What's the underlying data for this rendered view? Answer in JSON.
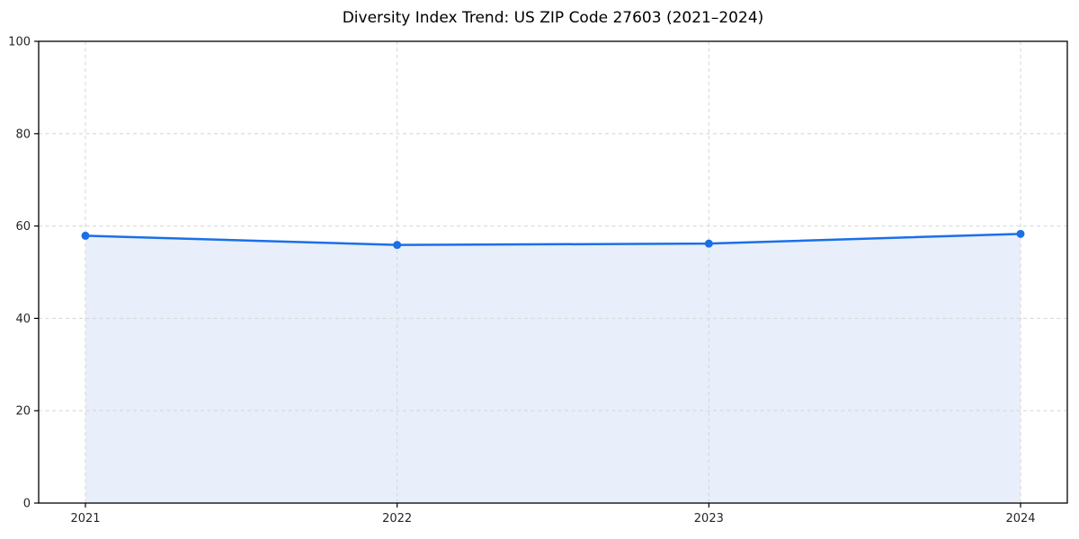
{
  "chart_data": {
    "type": "line",
    "title": "Diversity Index Trend: US ZIP Code 27603 (2021–2024)",
    "x": [
      2021,
      2022,
      2023,
      2024
    ],
    "x_tick_labels": [
      "2021",
      "2022",
      "2023",
      "2024"
    ],
    "values": [
      57.9,
      55.9,
      56.2,
      58.3
    ],
    "xlabel": "",
    "ylabel": "",
    "ylim": [
      0,
      100
    ],
    "y_ticks": [
      0,
      20,
      40,
      60,
      80,
      100
    ],
    "area_filled_to_zero": true,
    "markers": "circle",
    "grid": "dashed",
    "legend": "none",
    "colors": {
      "line": "#1b6fe8",
      "marker": "#1b6fe8",
      "area_fill": "#e8effb",
      "grid": "#d9d9d9",
      "axis": "#000000",
      "tick_label": "#262626",
      "title": "#000000",
      "background": "#ffffff"
    }
  }
}
